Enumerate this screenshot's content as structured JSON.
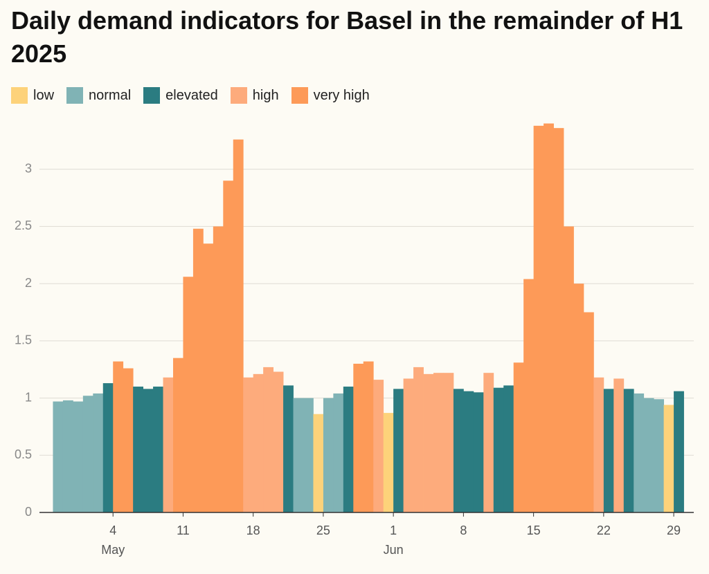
{
  "chart_data": {
    "type": "bar",
    "title": "Daily demand indicators for Basel in the remainder of H1 2025",
    "legend": [
      {
        "name": "low",
        "color": "#fdd27a"
      },
      {
        "name": "normal",
        "color": "#80b3b5"
      },
      {
        "name": "elevated",
        "color": "#2b7c81"
      },
      {
        "name": "high",
        "color": "#fdab7c"
      },
      {
        "name": "very high",
        "color": "#fd9a58"
      }
    ],
    "x": [
      "2025-04-28",
      "2025-04-29",
      "2025-04-30",
      "2025-05-01",
      "2025-05-02",
      "2025-05-03",
      "2025-05-04",
      "2025-05-05",
      "2025-05-06",
      "2025-05-07",
      "2025-05-08",
      "2025-05-09",
      "2025-05-10",
      "2025-05-11",
      "2025-05-12",
      "2025-05-13",
      "2025-05-14",
      "2025-05-15",
      "2025-05-16",
      "2025-05-17",
      "2025-05-18",
      "2025-05-19",
      "2025-05-20",
      "2025-05-21",
      "2025-05-22",
      "2025-05-23",
      "2025-05-24",
      "2025-05-25",
      "2025-05-26",
      "2025-05-27",
      "2025-05-28",
      "2025-05-29",
      "2025-05-30",
      "2025-05-31",
      "2025-06-01",
      "2025-06-02",
      "2025-06-03",
      "2025-06-04",
      "2025-06-05",
      "2025-06-06",
      "2025-06-07",
      "2025-06-08",
      "2025-06-09",
      "2025-06-10",
      "2025-06-11",
      "2025-06-12",
      "2025-06-13",
      "2025-06-14",
      "2025-06-15",
      "2025-06-16",
      "2025-06-17",
      "2025-06-18",
      "2025-06-19",
      "2025-06-20",
      "2025-06-21",
      "2025-06-22",
      "2025-06-23",
      "2025-06-24",
      "2025-06-25",
      "2025-06-26",
      "2025-06-27",
      "2025-06-28",
      "2025-06-29"
    ],
    "values": [
      0.97,
      0.98,
      0.97,
      1.02,
      1.04,
      1.13,
      1.32,
      1.26,
      1.1,
      1.08,
      1.1,
      1.18,
      1.35,
      2.06,
      2.48,
      2.35,
      2.5,
      2.9,
      3.26,
      1.18,
      1.21,
      1.27,
      1.23,
      1.11,
      1.0,
      1.0,
      0.86,
      1.0,
      1.04,
      1.1,
      1.3,
      1.32,
      1.16,
      0.87,
      1.08,
      1.17,
      1.27,
      1.21,
      1.22,
      1.22,
      1.08,
      1.06,
      1.05,
      1.22,
      1.09,
      1.11,
      1.31,
      2.04,
      3.38,
      3.4,
      3.36,
      2.5,
      2.0,
      1.75,
      1.18,
      1.08,
      1.17,
      1.08,
      1.04,
      1.0,
      0.99,
      0.94,
      1.06
    ],
    "levels": [
      "normal",
      "normal",
      "normal",
      "normal",
      "normal",
      "elevated",
      "very high",
      "very high",
      "elevated",
      "elevated",
      "elevated",
      "high",
      "very high",
      "very high",
      "very high",
      "very high",
      "very high",
      "very high",
      "very high",
      "high",
      "high",
      "high",
      "high",
      "elevated",
      "normal",
      "normal",
      "low",
      "normal",
      "normal",
      "elevated",
      "very high",
      "very high",
      "high",
      "low",
      "elevated",
      "high",
      "high",
      "high",
      "high",
      "high",
      "elevated",
      "elevated",
      "elevated",
      "high",
      "elevated",
      "elevated",
      "very high",
      "very high",
      "very high",
      "very high",
      "very high",
      "very high",
      "very high",
      "very high",
      "high",
      "elevated",
      "high",
      "elevated",
      "normal",
      "normal",
      "normal",
      "low",
      "elevated"
    ],
    "xlim": [
      "2025-04-27",
      "2025-07-01"
    ],
    "xticks": [
      {
        "value": "2025-05-04",
        "label": "4"
      },
      {
        "value": "2025-05-11",
        "label": "11"
      },
      {
        "value": "2025-05-18",
        "label": "18"
      },
      {
        "value": "2025-05-25",
        "label": "25"
      },
      {
        "value": "2025-06-01",
        "label": "1"
      },
      {
        "value": "2025-06-08",
        "label": "8"
      },
      {
        "value": "2025-06-15",
        "label": "15"
      },
      {
        "value": "2025-06-22",
        "label": "22"
      },
      {
        "value": "2025-06-29",
        "label": "29"
      }
    ],
    "xmonths": [
      {
        "value": "2025-05-04",
        "label": "May"
      },
      {
        "value": "2025-06-01",
        "label": "Jun"
      }
    ],
    "ylim": [
      0,
      3.5
    ],
    "yticks": [
      0,
      0.5,
      1,
      1.5,
      2,
      2.5,
      3
    ],
    "grid": true
  }
}
